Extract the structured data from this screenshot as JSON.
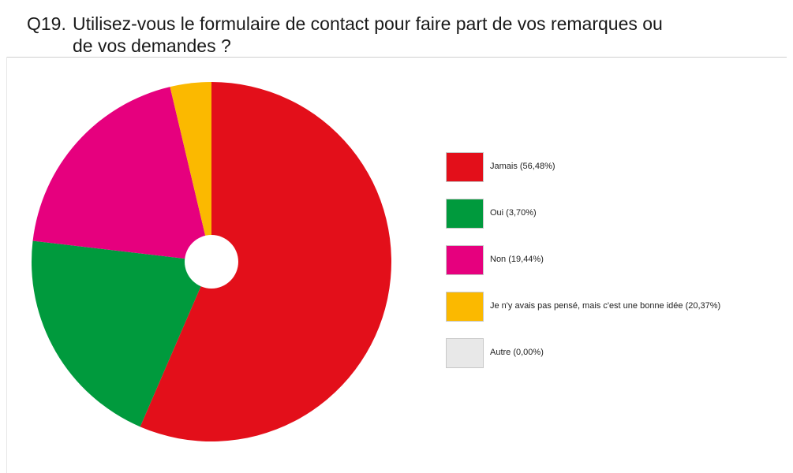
{
  "question": {
    "number": "Q19.",
    "text": "Utilisez-vous le formulaire de contact pour faire part de vos remarques ou de vos demandes ?"
  },
  "chart_data": {
    "type": "pie",
    "title": "",
    "donut_hole": true,
    "legend_position": "right",
    "series": [
      {
        "name": "Jamais (56,48%)",
        "value": 56.48,
        "color": "#e30f1a"
      },
      {
        "name": "Oui (3,70%)",
        "value": 3.7,
        "color": "#009a3d"
      },
      {
        "name": "Non (19,44%)",
        "value": 19.44,
        "color": "#e6007e"
      },
      {
        "name": "Je n'y avais pas pensé, mais c'est une bonne idée (20,37%)",
        "value": 20.37,
        "color": "#fbb900"
      },
      {
        "name": "Autre (0,00%)",
        "value": 0.0,
        "color": "#e8e8e8"
      }
    ]
  }
}
